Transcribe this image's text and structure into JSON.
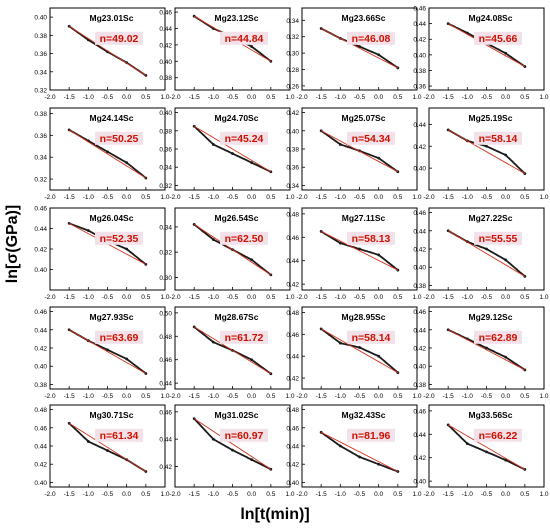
{
  "figure": {
    "ylabel": "ln[σ(GPa)]",
    "xlabel": "ln[t(min)]"
  },
  "chart_data": [
    {
      "type": "line",
      "title": "Mg23.01Sc",
      "annotation": "n=49.02",
      "xlim": [
        -2.0,
        1.0
      ],
      "ylim": [
        0.32,
        0.41
      ],
      "yticks": [
        0.32,
        0.34,
        0.36,
        0.38,
        0.4
      ],
      "x": [
        -1.5,
        -1.0,
        -0.5,
        0.0,
        0.5
      ],
      "series": [
        {
          "values": [
            0.39,
            0.375,
            0.362,
            0.35,
            0.336
          ]
        }
      ]
    },
    {
      "type": "line",
      "title": "Mg23.12Sc",
      "annotation": "n=44.84",
      "xlim": [
        -2.0,
        1.0
      ],
      "ylim": [
        0.365,
        0.465
      ],
      "yticks": [
        0.38,
        0.4,
        0.42,
        0.44,
        0.46
      ],
      "x": [
        -1.5,
        -1.0,
        -0.5,
        0.0,
        0.5
      ],
      "series": [
        {
          "values": [
            0.455,
            0.44,
            0.43,
            0.418,
            0.4
          ]
        }
      ]
    },
    {
      "type": "line",
      "title": "Mg23.66Sc",
      "annotation": "n=46.08",
      "xlim": [
        -2.0,
        1.0
      ],
      "ylim": [
        0.255,
        0.355
      ],
      "yticks": [
        0.26,
        0.28,
        0.3,
        0.32,
        0.34
      ],
      "x": [
        -1.5,
        -1.0,
        -0.5,
        0.0,
        0.5
      ],
      "series": [
        {
          "values": [
            0.33,
            0.318,
            0.308,
            0.298,
            0.282
          ]
        }
      ]
    },
    {
      "type": "line",
      "title": "Mg24.08Sc",
      "annotation": "n=45.66",
      "xlim": [
        -2.0,
        1.0
      ],
      "ylim": [
        0.355,
        0.46
      ],
      "yticks": [
        0.36,
        0.38,
        0.4,
        0.42,
        0.44,
        0.46
      ],
      "x": [
        -1.5,
        -1.0,
        -0.5,
        0.0,
        0.5
      ],
      "series": [
        {
          "values": [
            0.44,
            0.428,
            0.415,
            0.402,
            0.385
          ]
        }
      ]
    },
    {
      "type": "line",
      "title": "Mg24.14Sc",
      "annotation": "n=50.25",
      "xlim": [
        -2.0,
        1.0
      ],
      "ylim": [
        0.31,
        0.385
      ],
      "yticks": [
        0.32,
        0.34,
        0.36,
        0.38
      ],
      "x": [
        -1.5,
        -1.0,
        -0.5,
        0.0,
        0.5
      ],
      "series": [
        {
          "values": [
            0.365,
            0.355,
            0.345,
            0.335,
            0.321
          ]
        }
      ]
    },
    {
      "type": "line",
      "title": "Mg24.70Sc",
      "annotation": "n=45.24",
      "xlim": [
        -2.0,
        1.0
      ],
      "ylim": [
        0.315,
        0.405
      ],
      "yticks": [
        0.32,
        0.34,
        0.36,
        0.38,
        0.4
      ],
      "x": [
        -1.5,
        -1.0,
        -0.5,
        0.0,
        0.5
      ],
      "series": [
        {
          "values": [
            0.385,
            0.365,
            0.355,
            0.345,
            0.335
          ]
        }
      ]
    },
    {
      "type": "line",
      "title": "Mg25.07Sc",
      "annotation": "n=54.34",
      "xlim": [
        -2.0,
        1.0
      ],
      "ylim": [
        0.335,
        0.425
      ],
      "yticks": [
        0.34,
        0.36,
        0.38,
        0.4,
        0.42
      ],
      "x": [
        -1.5,
        -1.0,
        -0.5,
        0.0,
        0.5
      ],
      "series": [
        {
          "values": [
            0.4,
            0.385,
            0.378,
            0.37,
            0.355
          ]
        }
      ]
    },
    {
      "type": "line",
      "title": "Mg25.19Sc",
      "annotation": "n=58.14",
      "xlim": [
        -2.0,
        1.0
      ],
      "ylim": [
        0.38,
        0.455
      ],
      "yticks": [
        0.4,
        0.42,
        0.44
      ],
      "x": [
        -1.5,
        -1.0,
        -0.5,
        0.0,
        0.5
      ],
      "series": [
        {
          "values": [
            0.435,
            0.425,
            0.42,
            0.412,
            0.395
          ]
        }
      ]
    },
    {
      "type": "line",
      "title": "Mg26.04Sc",
      "annotation": "n=52.35",
      "xlim": [
        -2.0,
        1.0
      ],
      "ylim": [
        0.38,
        0.46
      ],
      "yticks": [
        0.4,
        0.42,
        0.44,
        0.46
      ],
      "x": [
        -1.5,
        -1.0,
        -0.5,
        0.0,
        0.5
      ],
      "series": [
        {
          "values": [
            0.445,
            0.438,
            0.428,
            0.42,
            0.405
          ]
        }
      ]
    },
    {
      "type": "line",
      "title": "Mg26.54Sc",
      "annotation": "n=62.50",
      "xlim": [
        -2.0,
        1.0
      ],
      "ylim": [
        0.29,
        0.355
      ],
      "yticks": [
        0.3,
        0.32,
        0.34
      ],
      "x": [
        -1.5,
        -1.0,
        -0.5,
        0.0,
        0.5
      ],
      "series": [
        {
          "values": [
            0.342,
            0.33,
            0.322,
            0.314,
            0.302
          ]
        }
      ]
    },
    {
      "type": "line",
      "title": "Mg27.11Sc",
      "annotation": "n=58.13",
      "xlim": [
        -2.0,
        1.0
      ],
      "ylim": [
        0.415,
        0.485
      ],
      "yticks": [
        0.42,
        0.44,
        0.46,
        0.48
      ],
      "x": [
        -1.5,
        -1.0,
        -0.5,
        0.0,
        0.5
      ],
      "series": [
        {
          "values": [
            0.465,
            0.455,
            0.45,
            0.445,
            0.432
          ]
        }
      ]
    },
    {
      "type": "line",
      "title": "Mg27.22Sc",
      "annotation": "n=55.55",
      "xlim": [
        -2.0,
        1.0
      ],
      "ylim": [
        0.375,
        0.465
      ],
      "yticks": [
        0.38,
        0.4,
        0.42,
        0.44,
        0.46
      ],
      "x": [
        -1.5,
        -1.0,
        -0.5,
        0.0,
        0.5
      ],
      "series": [
        {
          "values": [
            0.44,
            0.428,
            0.42,
            0.408,
            0.39
          ]
        }
      ]
    },
    {
      "type": "line",
      "title": "Mg27.93Sc",
      "annotation": "n=63.69",
      "xlim": [
        -2.0,
        1.0
      ],
      "ylim": [
        0.375,
        0.465
      ],
      "yticks": [
        0.38,
        0.4,
        0.42,
        0.44,
        0.46
      ],
      "x": [
        -1.5,
        -1.0,
        -0.5,
        0.0,
        0.5
      ],
      "series": [
        {
          "values": [
            0.44,
            0.428,
            0.418,
            0.408,
            0.392
          ]
        }
      ]
    },
    {
      "type": "line",
      "title": "Mg28.67Sc",
      "annotation": "n=61.72",
      "xlim": [
        -2.0,
        1.0
      ],
      "ylim": [
        0.435,
        0.505
      ],
      "yticks": [
        0.44,
        0.46,
        0.48,
        0.5
      ],
      "x": [
        -1.5,
        -1.0,
        -0.5,
        0.0,
        0.5
      ],
      "series": [
        {
          "values": [
            0.488,
            0.475,
            0.468,
            0.46,
            0.448
          ]
        }
      ]
    },
    {
      "type": "line",
      "title": "Mg28.95Sc",
      "annotation": "n=58.14",
      "xlim": [
        -2.0,
        1.0
      ],
      "ylim": [
        0.41,
        0.485
      ],
      "yticks": [
        0.42,
        0.44,
        0.46,
        0.48
      ],
      "x": [
        -1.5,
        -1.0,
        -0.5,
        0.0,
        0.5
      ],
      "series": [
        {
          "values": [
            0.465,
            0.452,
            0.448,
            0.44,
            0.425
          ]
        }
      ]
    },
    {
      "type": "line",
      "title": "Mg29.12Sc",
      "annotation": "n=62.89",
      "xlim": [
        -2.0,
        1.0
      ],
      "ylim": [
        0.375,
        0.465
      ],
      "yticks": [
        0.38,
        0.4,
        0.42,
        0.44,
        0.46
      ],
      "x": [
        -1.5,
        -1.0,
        -0.5,
        0.0,
        0.5
      ],
      "series": [
        {
          "values": [
            0.44,
            0.43,
            0.42,
            0.41,
            0.396
          ]
        }
      ]
    },
    {
      "type": "line",
      "title": "Mg30.71Sc",
      "annotation": "n=61.34",
      "xlim": [
        -2.0,
        1.0
      ],
      "ylim": [
        0.395,
        0.485
      ],
      "yticks": [
        0.4,
        0.42,
        0.44,
        0.46,
        0.48
      ],
      "x": [
        -1.5,
        -1.0,
        -0.5,
        0.0,
        0.5
      ],
      "series": [
        {
          "values": [
            0.465,
            0.445,
            0.435,
            0.425,
            0.412
          ]
        }
      ]
    },
    {
      "type": "line",
      "title": "Mg31.02Sc",
      "annotation": "n=60.97",
      "xlim": [
        -2.0,
        1.0
      ],
      "ylim": [
        0.405,
        0.465
      ],
      "yticks": [
        0.42,
        0.44,
        0.46
      ],
      "x": [
        -1.5,
        -1.0,
        -0.5,
        0.0,
        0.5
      ],
      "series": [
        {
          "values": [
            0.455,
            0.44,
            0.432,
            0.425,
            0.418
          ]
        }
      ]
    },
    {
      "type": "line",
      "title": "Mg32.43Sc",
      "annotation": "n=81.96",
      "xlim": [
        -2.0,
        1.0
      ],
      "ylim": [
        0.395,
        0.485
      ],
      "yticks": [
        0.4,
        0.42,
        0.44,
        0.46,
        0.48
      ],
      "x": [
        -1.5,
        -1.0,
        -0.5,
        0.0,
        0.5
      ],
      "series": [
        {
          "values": [
            0.455,
            0.44,
            0.428,
            0.42,
            0.412
          ]
        }
      ]
    },
    {
      "type": "line",
      "title": "Mg33.56Sc",
      "annotation": "n=66.22",
      "xlim": [
        -2.0,
        1.0
      ],
      "ylim": [
        0.395,
        0.465
      ],
      "yticks": [
        0.4,
        0.42,
        0.44,
        0.46
      ],
      "x": [
        -1.5,
        -1.0,
        -0.5,
        0.0,
        0.5
      ],
      "series": [
        {
          "values": [
            0.448,
            0.432,
            0.425,
            0.418,
            0.41
          ]
        }
      ]
    }
  ],
  "colors": {
    "data": "#1a1a1a",
    "fit": "#d2321e",
    "annotation_text": "#cc1100",
    "annotation_bg": "#f3e1e9"
  }
}
